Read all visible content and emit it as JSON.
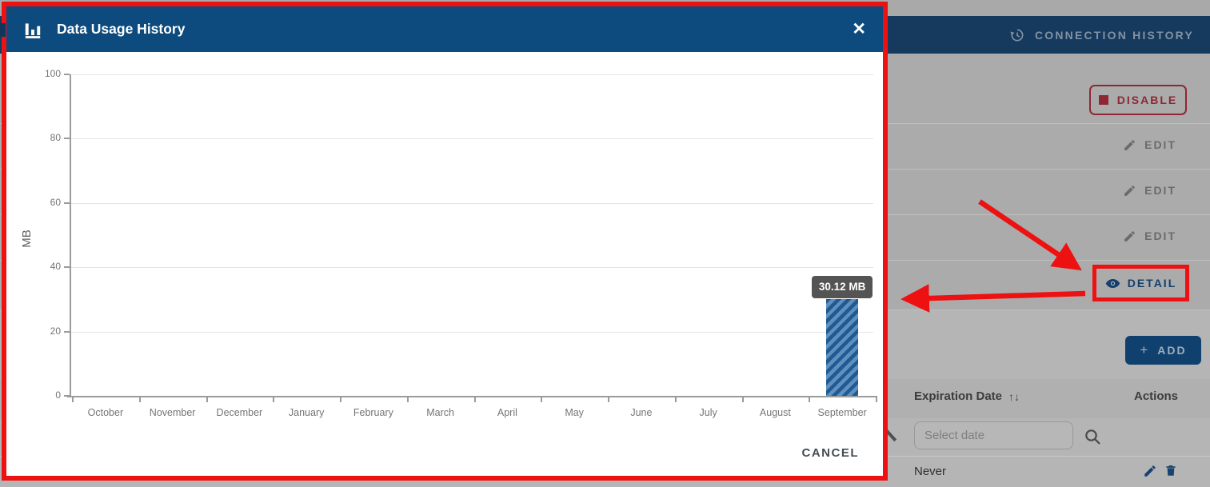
{
  "colors": {
    "modal_header": "#0d4a7d",
    "navy_accent": "#0f406e",
    "disable_red": "#8e2733",
    "annotation_red": "#ee1111",
    "bar_stripe_dark": "#1f5a94",
    "bar_stripe_light": "#6090bd"
  },
  "modal": {
    "title": "Data Usage History",
    "close_icon": "✕",
    "cancel_label": "CANCEL"
  },
  "chart_data": {
    "type": "bar",
    "title": "Data Usage History",
    "xlabel": "",
    "ylabel": "MB",
    "ylim": [
      0,
      100
    ],
    "yticks": [
      0,
      20,
      40,
      60,
      80,
      100
    ],
    "grid": true,
    "categories": [
      "October",
      "November",
      "December",
      "January",
      "February",
      "March",
      "April",
      "May",
      "June",
      "July",
      "August",
      "September"
    ],
    "values": [
      0,
      0,
      0,
      0,
      0,
      0,
      0,
      0,
      0,
      0,
      0,
      30.12
    ],
    "tooltip": {
      "month": "September",
      "label": "30.12 MB"
    }
  },
  "page": {
    "tab_connection_history": "CONNECTION HISTORY",
    "disable_label": "DISABLE",
    "edit_label": "EDIT",
    "detail_label": "DETAIL",
    "add_label": "ADD",
    "plus_icon": "+",
    "table": {
      "col_expiration": "Expiration Date",
      "sort_icon": "↑↓",
      "col_actions": "Actions",
      "date_filter_placeholder": "Select date",
      "rows": [
        {
          "expiration": "Never"
        }
      ]
    }
  }
}
